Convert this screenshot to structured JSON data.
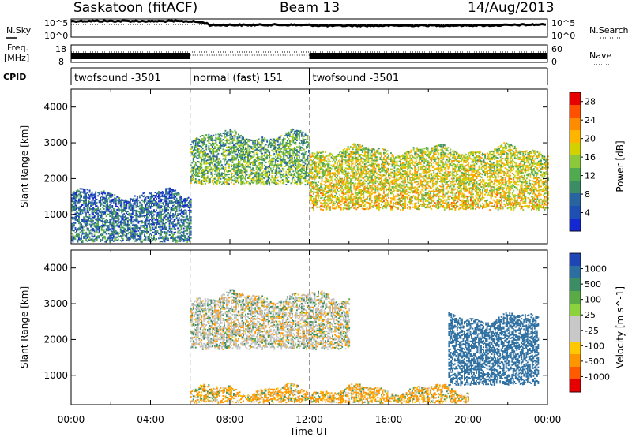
{
  "header": {
    "station": "Saskatoon (fitACF)",
    "beam": "Beam 13",
    "date": "14/Aug/2013"
  },
  "panel_labels": {
    "nsky": "N.Sky",
    "nsearch": "N.Search",
    "freq_line1": "Freq.",
    "freq_line2": "[MHz]",
    "nave": "Nave",
    "cpid": "CPID"
  },
  "noise_ticks": {
    "top": "10^5",
    "bottom": "10^0"
  },
  "freq_ticks": {
    "top": "18",
    "bottom": "8"
  },
  "nave_ticks": {
    "top": "60",
    "bottom": "0"
  },
  "cpid_segments": [
    {
      "label": "twofsound -3501",
      "start_hour": 0,
      "end_hour": 6
    },
    {
      "label": "normal (fast) 151",
      "start_hour": 6,
      "end_hour": 12
    },
    {
      "label": "twofsound -3501",
      "start_hour": 12,
      "end_hour": 24
    }
  ],
  "colors": {
    "power_scale": [
      "#1428d2",
      "#1e50b4",
      "#2864a0",
      "#3c8c64",
      "#50aa50",
      "#8cc83c",
      "#d2d200",
      "#ffb400",
      "#ff8c00",
      "#ff5000",
      "#e60000"
    ],
    "velocity_scale": [
      "#1e46b4",
      "#2d6ea0",
      "#3c8c64",
      "#5aaa46",
      "#8cd23c",
      "#c8c8c8",
      "#c8c8c8",
      "#ffc800",
      "#ff9600",
      "#ff5a00",
      "#e60000"
    ],
    "ground_scatter": "#bebebe"
  },
  "chart_data": [
    {
      "type": "heatmap",
      "name": "power",
      "xlabel": "",
      "ylabel": "Slant Range [km]",
      "colorbar_label": "Power [dB]",
      "colorbar_ticks": [
        "4",
        "8",
        "12",
        "16",
        "20",
        "24",
        "28"
      ],
      "colorbar_range": [
        0,
        30
      ],
      "xlim": [
        0,
        24
      ],
      "ylim": [
        180,
        4500
      ],
      "yticks": [
        "1000",
        "2000",
        "3000",
        "4000"
      ],
      "scatter_regions": [
        {
          "start_hour": 0,
          "end_hour": 6,
          "range_low": 200,
          "range_high": 1560,
          "mean_power": 8
        },
        {
          "start_hour": 6,
          "end_hour": 12,
          "range_low": 1800,
          "range_high": 3200,
          "mean_power": 14
        },
        {
          "start_hour": 12,
          "end_hour": 24,
          "range_low": 1100,
          "range_high": 2800,
          "mean_power": 20
        }
      ]
    },
    {
      "type": "heatmap",
      "name": "velocity",
      "xlabel": "Time UT",
      "ylabel": "Slant Range [km]",
      "colorbar_label": "Velocity [m s^-1]",
      "colorbar_ticks": [
        "1000",
        "500",
        "100",
        "25",
        "-25",
        "-100",
        "-500",
        "-1000"
      ],
      "xlim": [
        0,
        24
      ],
      "ylim": [
        180,
        4500
      ],
      "yticks": [
        "1000",
        "2000",
        "3000",
        "4000"
      ],
      "xticks": [
        "00:00",
        "04:00",
        "08:00",
        "12:00",
        "16:00",
        "20:00",
        "00:00"
      ],
      "scatter_regions": [
        {
          "start_hour": 6,
          "end_hour": 14,
          "range_low": 1700,
          "range_high": 3200,
          "mean_velocity": 0
        },
        {
          "start_hour": 19,
          "end_hour": 23.5,
          "range_low": 700,
          "range_high": 2600,
          "mean_velocity": 500
        },
        {
          "start_hour": 6,
          "end_hour": 20,
          "range_low": 200,
          "range_high": 600,
          "mean_velocity": -100
        }
      ]
    }
  ],
  "sky_noise": {
    "hours": [
      0,
      1,
      2,
      3,
      4,
      5,
      6,
      7,
      8,
      9,
      10,
      11,
      12,
      13,
      14,
      15,
      16,
      17,
      18,
      19,
      20,
      21,
      22,
      23,
      24
    ],
    "values": [
      25000,
      28000,
      26000,
      27000,
      24000,
      25000,
      23000,
      2000,
      2200,
      2100,
      2500,
      2300,
      2000,
      1300,
      1500,
      1400,
      1600,
      1500,
      1700,
      1600,
      1800,
      1700,
      2000,
      2500,
      3000
    ]
  },
  "search_noise_level": 3000,
  "nave_level": 9
}
